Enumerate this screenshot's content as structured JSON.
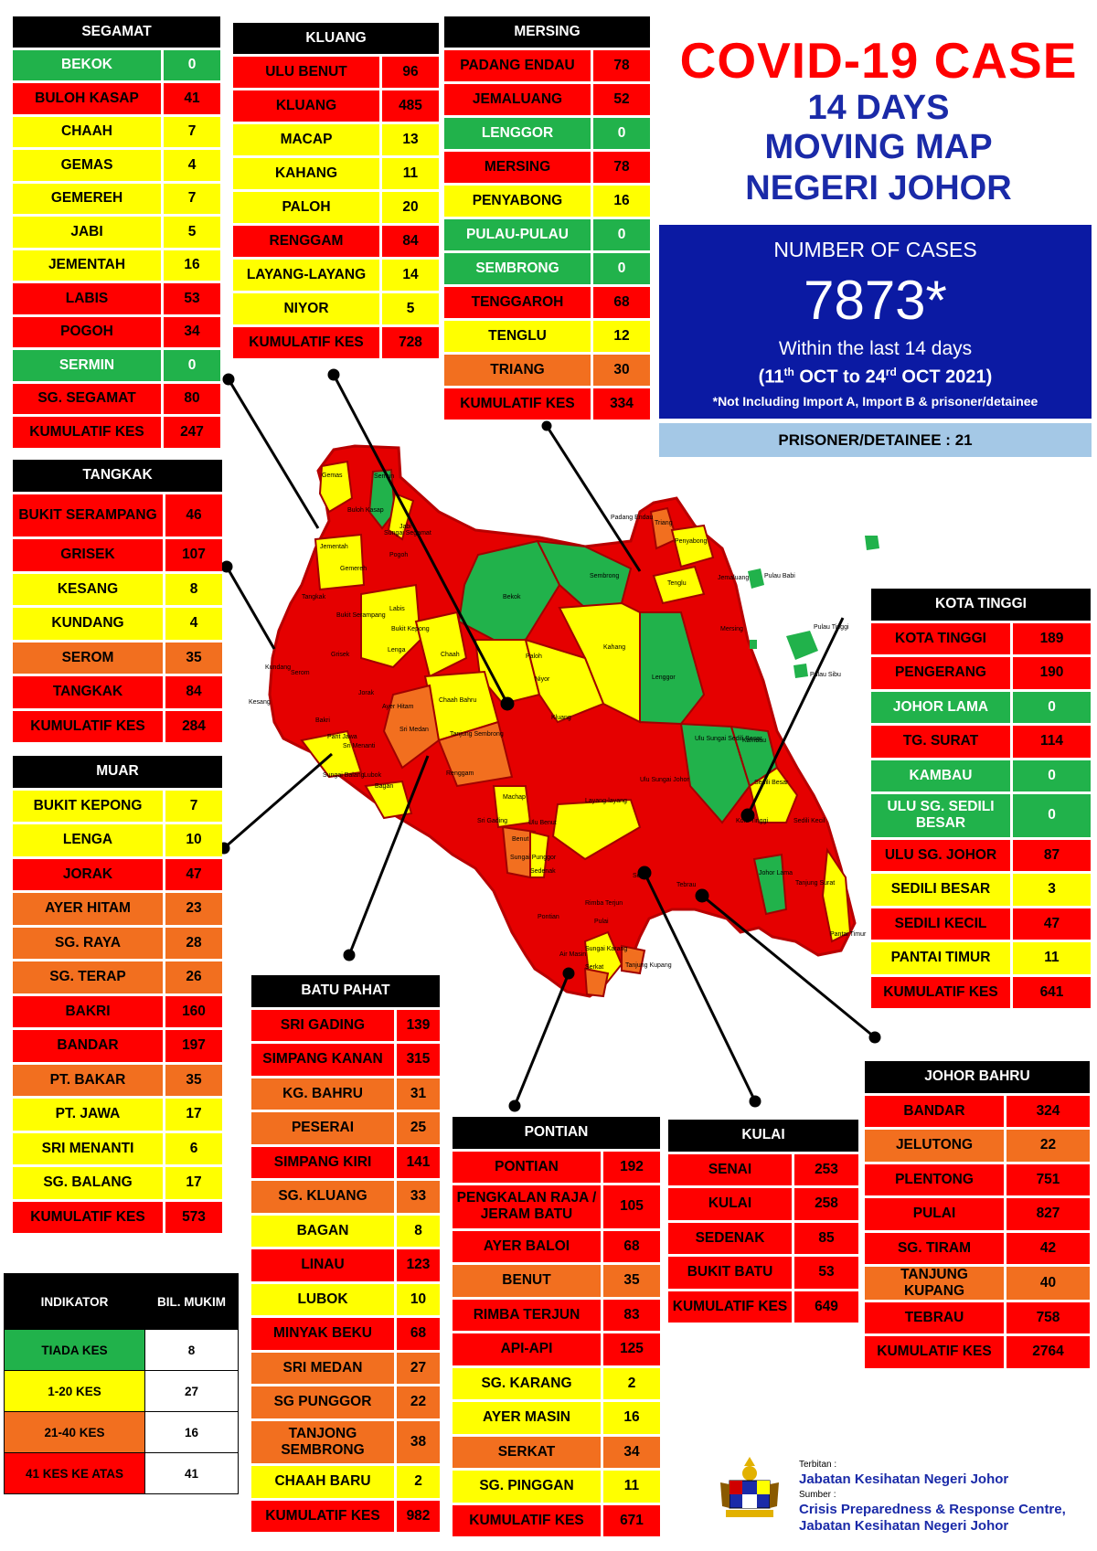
{
  "header": {
    "title_line1": "COVID-19 CASE",
    "title_line2": "14 DAYS",
    "title_line3": "MOVING MAP",
    "title_line4": "NEGERI JOHOR"
  },
  "summary": {
    "label": "NUMBER OF CASES",
    "total": "7873*",
    "within": "Within the last 14 days",
    "date_start_day": "11",
    "date_start_sup": "th",
    "date_start_rest": "OCT to",
    "date_end_day": "24",
    "date_end_sup": "rd",
    "date_end_rest": "OCT 2021",
    "note": "*Not Including Import A, Import B & prisoner/detainee",
    "prisoner": "PRISONER/DETAINEE : 21"
  },
  "colors": {
    "red": "#ff0000",
    "yellow": "#ffff00",
    "green": "#21b24b",
    "orange": "#f26f1f",
    "navy": "#0b1aa3",
    "title_red": "#ff0000",
    "title_blue": "#1a2aa8"
  },
  "districts": {
    "segamat": {
      "name": "SEGAMAT",
      "rows": [
        {
          "area": "BEKOK",
          "cases": "0",
          "level": "green"
        },
        {
          "area": "BULOH KASAP",
          "cases": "41",
          "level": "red"
        },
        {
          "area": "CHAAH",
          "cases": "7",
          "level": "yellow"
        },
        {
          "area": "GEMAS",
          "cases": "4",
          "level": "yellow"
        },
        {
          "area": "GEMEREH",
          "cases": "7",
          "level": "yellow"
        },
        {
          "area": "JABI",
          "cases": "5",
          "level": "yellow"
        },
        {
          "area": "JEMENTAH",
          "cases": "16",
          "level": "yellow"
        },
        {
          "area": "LABIS",
          "cases": "53",
          "level": "red"
        },
        {
          "area": "POGOH",
          "cases": "34",
          "level": "red"
        },
        {
          "area": "SERMIN",
          "cases": "0",
          "level": "green"
        },
        {
          "area": "SG. SEGAMAT",
          "cases": "80",
          "level": "red"
        },
        {
          "area": "KUMULATIF KES",
          "cases": "247",
          "level": "red"
        }
      ]
    },
    "kluang": {
      "name": "KLUANG",
      "rows": [
        {
          "area": "ULU BENUT",
          "cases": "96",
          "level": "red"
        },
        {
          "area": "KLUANG",
          "cases": "485",
          "level": "red"
        },
        {
          "area": "MACAP",
          "cases": "13",
          "level": "yellow"
        },
        {
          "area": "KAHANG",
          "cases": "11",
          "level": "yellow"
        },
        {
          "area": "PALOH",
          "cases": "20",
          "level": "yellow"
        },
        {
          "area": "RENGGAM",
          "cases": "84",
          "level": "red"
        },
        {
          "area": "LAYANG-LAYANG",
          "cases": "14",
          "level": "yellow"
        },
        {
          "area": "NIYOR",
          "cases": "5",
          "level": "yellow"
        },
        {
          "area": "KUMULATIF KES",
          "cases": "728",
          "level": "red"
        }
      ]
    },
    "mersing": {
      "name": "MERSING",
      "rows": [
        {
          "area": "PADANG ENDAU",
          "cases": "78",
          "level": "red"
        },
        {
          "area": "JEMALUANG",
          "cases": "52",
          "level": "red"
        },
        {
          "area": "LENGGOR",
          "cases": "0",
          "level": "green"
        },
        {
          "area": "MERSING",
          "cases": "78",
          "level": "red"
        },
        {
          "area": "PENYABONG",
          "cases": "16",
          "level": "yellow"
        },
        {
          "area": "PULAU-PULAU",
          "cases": "0",
          "level": "green"
        },
        {
          "area": "SEMBRONG",
          "cases": "0",
          "level": "green"
        },
        {
          "area": "TENGGAROH",
          "cases": "68",
          "level": "red"
        },
        {
          "area": "TENGLU",
          "cases": "12",
          "level": "yellow"
        },
        {
          "area": "TRIANG",
          "cases": "30",
          "level": "orange"
        },
        {
          "area": "KUMULATIF KES",
          "cases": "334",
          "level": "red"
        }
      ]
    },
    "tangkak": {
      "name": "TANGKAK",
      "rows": [
        {
          "area": "BUKIT SERAMPANG",
          "cases": "46",
          "level": "red"
        },
        {
          "area": "GRISEK",
          "cases": "107",
          "level": "red"
        },
        {
          "area": "KESANG",
          "cases": "8",
          "level": "yellow"
        },
        {
          "area": "KUNDANG",
          "cases": "4",
          "level": "yellow"
        },
        {
          "area": "SEROM",
          "cases": "35",
          "level": "orange"
        },
        {
          "area": "TANGKAK",
          "cases": "84",
          "level": "red"
        },
        {
          "area": "KUMULATIF KES",
          "cases": "284",
          "level": "red"
        }
      ]
    },
    "muar": {
      "name": "MUAR",
      "rows": [
        {
          "area": "BUKIT KEPONG",
          "cases": "7",
          "level": "yellow"
        },
        {
          "area": "LENGA",
          "cases": "10",
          "level": "yellow"
        },
        {
          "area": "JORAK",
          "cases": "47",
          "level": "red"
        },
        {
          "area": "AYER HITAM",
          "cases": "23",
          "level": "orange"
        },
        {
          "area": "SG. RAYA",
          "cases": "28",
          "level": "orange"
        },
        {
          "area": "SG. TERAP",
          "cases": "26",
          "level": "orange"
        },
        {
          "area": "BAKRI",
          "cases": "160",
          "level": "red"
        },
        {
          "area": "BANDAR",
          "cases": "197",
          "level": "red"
        },
        {
          "area": "PT. BAKAR",
          "cases": "35",
          "level": "orange"
        },
        {
          "area": "PT. JAWA",
          "cases": "17",
          "level": "yellow"
        },
        {
          "area": "SRI MENANTI",
          "cases": "6",
          "level": "yellow"
        },
        {
          "area": "SG. BALANG",
          "cases": "17",
          "level": "yellow"
        },
        {
          "area": "KUMULATIF KES",
          "cases": "573",
          "level": "red"
        }
      ]
    },
    "batu_pahat": {
      "name": "BATU PAHAT",
      "rows": [
        {
          "area": "SRI GADING",
          "cases": "139",
          "level": "red"
        },
        {
          "area": "SIMPANG KANAN",
          "cases": "315",
          "level": "red"
        },
        {
          "area": "KG. BAHRU",
          "cases": "31",
          "level": "orange"
        },
        {
          "area": "PESERAI",
          "cases": "25",
          "level": "orange"
        },
        {
          "area": "SIMPANG KIRI",
          "cases": "141",
          "level": "red"
        },
        {
          "area": "SG. KLUANG",
          "cases": "33",
          "level": "orange"
        },
        {
          "area": "BAGAN",
          "cases": "8",
          "level": "yellow"
        },
        {
          "area": "LINAU",
          "cases": "123",
          "level": "red"
        },
        {
          "area": "LUBOK",
          "cases": "10",
          "level": "yellow"
        },
        {
          "area": "MINYAK BEKU",
          "cases": "68",
          "level": "red"
        },
        {
          "area": "SRI MEDAN",
          "cases": "27",
          "level": "orange"
        },
        {
          "area": "SG PUNGGOR",
          "cases": "22",
          "level": "orange"
        },
        {
          "area": "TANJONG SEMBRONG",
          "cases": "38",
          "level": "orange"
        },
        {
          "area": "CHAAH BARU",
          "cases": "2",
          "level": "yellow"
        },
        {
          "area": "KUMULATIF KES",
          "cases": "982",
          "level": "red"
        }
      ]
    },
    "pontian": {
      "name": "PONTIAN",
      "rows": [
        {
          "area": "PONTIAN",
          "cases": "192",
          "level": "red"
        },
        {
          "area": "PENGKALAN RAJA / JERAM BATU",
          "cases": "105",
          "level": "red"
        },
        {
          "area": "AYER BALOI",
          "cases": "68",
          "level": "red"
        },
        {
          "area": "BENUT",
          "cases": "35",
          "level": "orange"
        },
        {
          "area": "RIMBA TERJUN",
          "cases": "83",
          "level": "red"
        },
        {
          "area": "API-API",
          "cases": "125",
          "level": "red"
        },
        {
          "area": "SG. KARANG",
          "cases": "2",
          "level": "yellow"
        },
        {
          "area": "AYER MASIN",
          "cases": "16",
          "level": "yellow"
        },
        {
          "area": "SERKAT",
          "cases": "34",
          "level": "orange"
        },
        {
          "area": "SG. PINGGAN",
          "cases": "11",
          "level": "yellow"
        },
        {
          "area": "KUMULATIF KES",
          "cases": "671",
          "level": "red"
        }
      ]
    },
    "kulai": {
      "name": "KULAI",
      "rows": [
        {
          "area": "SENAI",
          "cases": "253",
          "level": "red"
        },
        {
          "area": "KULAI",
          "cases": "258",
          "level": "red"
        },
        {
          "area": "SEDENAK",
          "cases": "85",
          "level": "red"
        },
        {
          "area": "BUKIT BATU",
          "cases": "53",
          "level": "red"
        },
        {
          "area": "KUMULATIF KES",
          "cases": "649",
          "level": "red"
        }
      ]
    },
    "kota_tinggi": {
      "name": "KOTA TINGGI",
      "rows": [
        {
          "area": "KOTA TINGGI",
          "cases": "189",
          "level": "red"
        },
        {
          "area": "PENGERANG",
          "cases": "190",
          "level": "red"
        },
        {
          "area": "JOHOR LAMA",
          "cases": "0",
          "level": "green"
        },
        {
          "area": "TG. SURAT",
          "cases": "114",
          "level": "red"
        },
        {
          "area": "KAMBAU",
          "cases": "0",
          "level": "green"
        },
        {
          "area": "ULU SG. SEDILI BESAR",
          "cases": "0",
          "level": "green"
        },
        {
          "area": "ULU  SG. JOHOR",
          "cases": "87",
          "level": "red"
        },
        {
          "area": "SEDILI BESAR",
          "cases": "3",
          "level": "yellow"
        },
        {
          "area": "SEDILI KECIL",
          "cases": "47",
          "level": "red"
        },
        {
          "area": "PANTAI TIMUR",
          "cases": "11",
          "level": "yellow"
        },
        {
          "area": "KUMULATIF KES",
          "cases": "641",
          "level": "red"
        }
      ]
    },
    "johor_bahru": {
      "name": "JOHOR BAHRU",
      "rows": [
        {
          "area": "BANDAR",
          "cases": "324",
          "level": "red"
        },
        {
          "area": "JELUTONG",
          "cases": "22",
          "level": "orange"
        },
        {
          "area": "PLENTONG",
          "cases": "751",
          "level": "red"
        },
        {
          "area": "PULAI",
          "cases": "827",
          "level": "red"
        },
        {
          "area": "SG. TIRAM",
          "cases": "42",
          "level": "red"
        },
        {
          "area": "TANJUNG KUPANG",
          "cases": "40",
          "level": "orange"
        },
        {
          "area": "TEBRAU",
          "cases": "758",
          "level": "red"
        },
        {
          "area": "KUMULATIF KES",
          "cases": "2764",
          "level": "red"
        }
      ]
    }
  },
  "legend": {
    "col1": "INDIKATOR",
    "col2": "BIL. MUKIM",
    "rows": [
      {
        "label": "TIADA KES",
        "count": "8",
        "level": "green"
      },
      {
        "label": "1-20 KES",
        "count": "27",
        "level": "yellow"
      },
      {
        "label": "21-40 KES",
        "count": "16",
        "level": "orange"
      },
      {
        "label": "41 KES KE ATAS",
        "count": "41",
        "level": "red"
      }
    ]
  },
  "map_labels": [
    {
      "text": "Gemas"
    },
    {
      "text": "Sermin"
    },
    {
      "text": "Jabi"
    },
    {
      "text": "Buloh Kasap"
    },
    {
      "text": "Sungai Segamat"
    },
    {
      "text": "Jementah"
    },
    {
      "text": "Pogoh"
    },
    {
      "text": "Gemereh"
    },
    {
      "text": "Tangkak"
    },
    {
      "text": "Bukit Serampang"
    },
    {
      "text": "Bukit Kepong"
    },
    {
      "text": "Labis"
    },
    {
      "text": "Bekok"
    },
    {
      "text": "Sembrong"
    },
    {
      "text": "Lenga"
    },
    {
      "text": "Chaah"
    },
    {
      "text": "Paloh"
    },
    {
      "text": "Kahang"
    },
    {
      "text": "Lenggor"
    },
    {
      "text": "Mersing"
    },
    {
      "text": "Jemaluang"
    },
    {
      "text": "Niyor"
    },
    {
      "text": "Chaah Bahru"
    },
    {
      "text": "Kluang"
    },
    {
      "text": "Sri Medan"
    },
    {
      "text": "Tanjung Sembrong"
    },
    {
      "text": "Grisek"
    },
    {
      "text": "Kundang"
    },
    {
      "text": "Serom"
    },
    {
      "text": "Kesang"
    },
    {
      "text": "Jorak"
    },
    {
      "text": "Bakri"
    },
    {
      "text": "Ayer Hitam"
    },
    {
      "text": "Parit Jawa"
    },
    {
      "text": "Sri Menanti"
    },
    {
      "text": "Sungai Balang"
    },
    {
      "text": "Lubok"
    },
    {
      "text": "Bagan"
    },
    {
      "text": "Renggam"
    },
    {
      "text": "Machap"
    },
    {
      "text": "Layang-layang"
    },
    {
      "text": "Ulu Benut"
    },
    {
      "text": "Sri Gading"
    },
    {
      "text": "Ulu Sungai Johor"
    },
    {
      "text": "Ulu Sungai Sedili Besar"
    },
    {
      "text": "Kambau"
    },
    {
      "text": "Sedili Besar"
    },
    {
      "text": "Kota Tinggi"
    },
    {
      "text": "Sedili Kecil"
    },
    {
      "text": "Johor Lama"
    },
    {
      "text": "Tanjung Surat"
    },
    {
      "text": "Pantai Timur"
    },
    {
      "text": "Sedenak"
    },
    {
      "text": "Senai"
    },
    {
      "text": "Benut"
    },
    {
      "text": "Sungai Punggor"
    },
    {
      "text": "Pontian"
    },
    {
      "text": "Tebrau"
    },
    {
      "text": "Pulai"
    },
    {
      "text": "Air Masin"
    },
    {
      "text": "Serkat"
    },
    {
      "text": "Sungai Karang"
    },
    {
      "text": "Rimba Terjun"
    },
    {
      "text": "Tanjung Kupang"
    },
    {
      "text": "Padang Endau"
    },
    {
      "text": "Triang"
    },
    {
      "text": "Penyabong"
    },
    {
      "text": "Tenglu"
    },
    {
      "text": "Pulau Babi"
    },
    {
      "text": "Pulau Tinggi"
    },
    {
      "text": "Pulau Sibu"
    }
  ],
  "credits": {
    "label1": "Terbitan :",
    "publisher": "Jabatan Kesihatan Negeri Johor",
    "label2": "Sumber :",
    "source_line1": "Crisis Preparedness & Response Centre,",
    "source_line2": "Jabatan Kesihatan Negeri Johor"
  }
}
